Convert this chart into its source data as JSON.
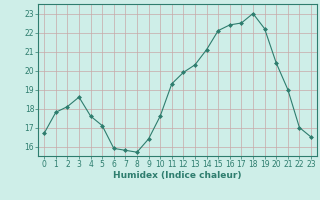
{
  "x": [
    0,
    1,
    2,
    3,
    4,
    5,
    6,
    7,
    8,
    9,
    10,
    11,
    12,
    13,
    14,
    15,
    16,
    17,
    18,
    19,
    20,
    21,
    22,
    23
  ],
  "y": [
    16.7,
    17.8,
    18.1,
    18.6,
    17.6,
    17.1,
    15.9,
    15.8,
    15.7,
    16.4,
    17.6,
    19.3,
    19.9,
    20.3,
    21.1,
    22.1,
    22.4,
    22.5,
    23.0,
    22.2,
    20.4,
    19.0,
    17.0,
    16.5
  ],
  "line_color": "#2e7d6e",
  "marker": "D",
  "marker_size": 2.0,
  "bg_color": "#ceeee8",
  "grid_color": "#c8a8a8",
  "axis_color": "#2e7d6e",
  "tick_color": "#2e7d6e",
  "xlabel": "Humidex (Indice chaleur)",
  "xlim": [
    -0.5,
    23.5
  ],
  "ylim": [
    15.5,
    23.5
  ],
  "yticks": [
    16,
    17,
    18,
    19,
    20,
    21,
    22,
    23
  ],
  "xticks": [
    0,
    1,
    2,
    3,
    4,
    5,
    6,
    7,
    8,
    9,
    10,
    11,
    12,
    13,
    14,
    15,
    16,
    17,
    18,
    19,
    20,
    21,
    22,
    23
  ],
  "tick_fontsize": 5.5,
  "xlabel_fontsize": 6.5
}
